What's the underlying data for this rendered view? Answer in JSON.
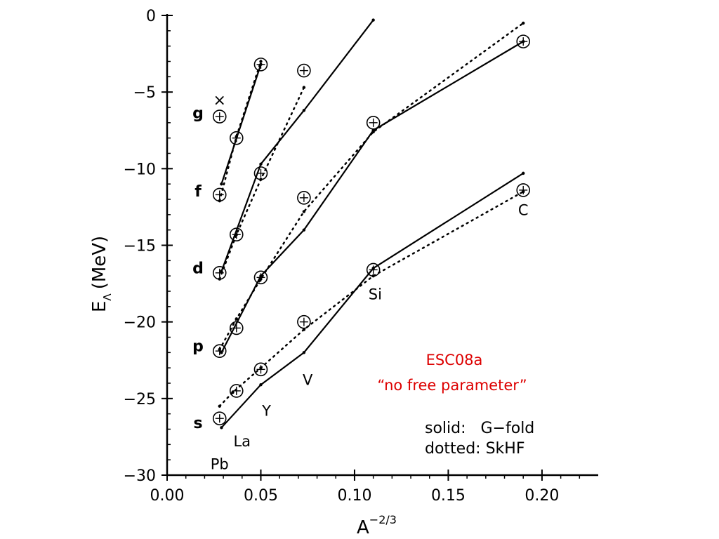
{
  "chart_data": {
    "type": "line",
    "xlabel": "A",
    "xlabel_sup": "−2/3",
    "ylabel": "E",
    "ylabel_sub": "Λ",
    "ylabel_unit": "(MeV)",
    "xlim": [
      0.0,
      0.23
    ],
    "ylim": [
      -30,
      0
    ],
    "x_ticks": [
      0.0,
      0.05,
      0.1,
      0.15,
      0.2
    ],
    "x_tick_labels": [
      "0.00",
      "0.05",
      "0.10",
      "0.15",
      "0.20"
    ],
    "y_ticks": [
      0,
      -5,
      -10,
      -15,
      -20,
      -25,
      -30
    ],
    "y_tick_labels": [
      "0",
      "−5",
      "−10",
      "−15",
      "−20",
      "−25",
      "−30"
    ],
    "series": [
      {
        "group": "s",
        "style": "solid",
        "x": [
          0.029,
          0.05,
          0.073,
          0.11,
          0.19
        ],
        "y": [
          -26.9,
          -24.1,
          -22.0,
          -16.5,
          -10.3
        ]
      },
      {
        "group": "s",
        "style": "dotted",
        "x": [
          0.028,
          0.035,
          0.05,
          0.073,
          0.11,
          0.19
        ],
        "y": [
          -25.5,
          -24.6,
          -23.0,
          -20.5,
          -17.0,
          -11.5
        ]
      },
      {
        "group": "p",
        "style": "solid",
        "x": [
          0.029,
          0.05,
          0.073,
          0.11,
          0.19
        ],
        "y": [
          -22.0,
          -17.0,
          -14.0,
          -7.5,
          -1.7
        ]
      },
      {
        "group": "p",
        "style": "dotted",
        "x": [
          0.028,
          0.037,
          0.05,
          0.073,
          0.11,
          0.19
        ],
        "y": [
          -21.8,
          -19.8,
          -17.2,
          -12.8,
          -7.6,
          -0.5
        ]
      },
      {
        "group": "d",
        "style": "solid",
        "x": [
          0.029,
          0.05,
          0.073,
          0.11
        ],
        "y": [
          -16.7,
          -9.7,
          -6.2,
          -0.3
        ]
      },
      {
        "group": "d",
        "style": "dotted",
        "x": [
          0.028,
          0.037,
          0.05,
          0.073
        ],
        "y": [
          -17.2,
          -14.3,
          -10.7,
          -4.7
        ]
      },
      {
        "group": "f",
        "style": "solid",
        "x": [
          0.029,
          0.05
        ],
        "y": [
          -11.0,
          -3.2
        ]
      },
      {
        "group": "f",
        "style": "dotted",
        "x": [
          0.028,
          0.037,
          0.05
        ],
        "y": [
          -12.1,
          -7.9,
          -3.0
        ]
      }
    ],
    "experimental_points": [
      {
        "x": 0.028,
        "y": -26.3
      },
      {
        "x": 0.037,
        "y": -24.5
      },
      {
        "x": 0.05,
        "y": -23.1
      },
      {
        "x": 0.073,
        "y": -20.0
      },
      {
        "x": 0.11,
        "y": -16.6
      },
      {
        "x": 0.19,
        "y": -11.4
      },
      {
        "x": 0.028,
        "y": -21.9
      },
      {
        "x": 0.037,
        "y": -20.4
      },
      {
        "x": 0.05,
        "y": -17.1
      },
      {
        "x": 0.073,
        "y": -11.9
      },
      {
        "x": 0.11,
        "y": -7.0
      },
      {
        "x": 0.19,
        "y": -1.7
      },
      {
        "x": 0.028,
        "y": -16.8
      },
      {
        "x": 0.037,
        "y": -14.3
      },
      {
        "x": 0.05,
        "y": -10.3
      },
      {
        "x": 0.073,
        "y": -3.6
      },
      {
        "x": 0.028,
        "y": -11.7
      },
      {
        "x": 0.037,
        "y": -8.0
      },
      {
        "x": 0.05,
        "y": -3.2
      },
      {
        "x": 0.028,
        "y": -6.6
      }
    ],
    "extra_marker": {
      "x": 0.028,
      "y": -5.5,
      "symbol": "×"
    },
    "wave_labels": [
      {
        "text": "g",
        "y": -6.4
      },
      {
        "text": "f",
        "y": -11.5
      },
      {
        "text": "d",
        "y": -16.5
      },
      {
        "text": "p",
        "y": -21.6
      },
      {
        "text": "s",
        "y": -26.6
      }
    ],
    "nucleus_labels": [
      {
        "text": "C",
        "x": 0.19,
        "y": -12.7
      },
      {
        "text": "Si",
        "x": 0.111,
        "y": -18.2
      },
      {
        "text": "V",
        "x": 0.075,
        "y": -23.8
      },
      {
        "text": "Y",
        "x": 0.053,
        "y": -25.8
      },
      {
        "text": "La",
        "x": 0.04,
        "y": -27.8
      },
      {
        "text": "Pb",
        "x": 0.028,
        "y": -29.3
      }
    ],
    "annotation_red_1": "ESC08a",
    "annotation_red_2": "“no free parameter”",
    "legend_line_1": "solid:   G−fold",
    "legend_line_2": "dotted: SkHF",
    "colors": {
      "axes": "#000000",
      "annotation": "#dd0000"
    }
  }
}
